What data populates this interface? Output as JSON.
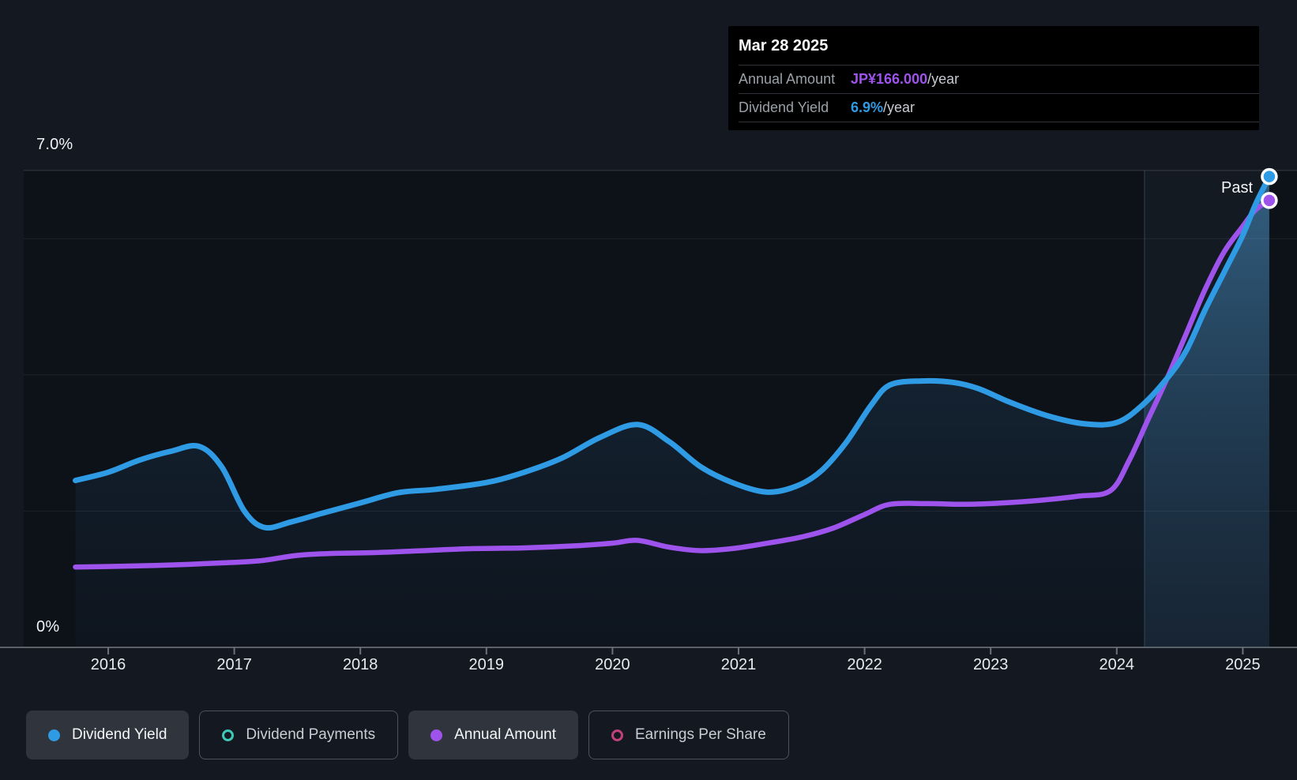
{
  "tooltip": {
    "date": "Mar 28 2025",
    "rows": [
      {
        "label": "Annual Amount",
        "value": "JP¥166.000",
        "suffix": "/year",
        "color": "#9E54EC"
      },
      {
        "label": "Dividend Yield",
        "value": "6.9%",
        "suffix": "/year",
        "color": "#2E9BE4"
      }
    ]
  },
  "legend": {
    "items": [
      {
        "label": "Dividend Yield",
        "color": "#2E9BE4",
        "swatch": "filled",
        "active": true
      },
      {
        "label": "Dividend Payments",
        "color": "#3EC8B8",
        "swatch": "ring",
        "active": false
      },
      {
        "label": "Annual Amount",
        "color": "#9E54EC",
        "swatch": "filled",
        "active": true
      },
      {
        "label": "Earnings Per Share",
        "color": "#C2417C",
        "swatch": "ring",
        "active": false
      }
    ]
  },
  "chart_data": {
    "type": "area",
    "title": "",
    "past_label": "Past",
    "y_axis": {
      "top_label": "7.0%",
      "bottom_label": "0%",
      "min_pct": 0,
      "max_pct": 7,
      "gridlines_pct": [
        7,
        6,
        4,
        2,
        0
      ]
    },
    "x_axis": {
      "ticks": [
        "2016",
        "2017",
        "2018",
        "2019",
        "2020",
        "2021",
        "2022",
        "2023",
        "2024",
        "2025"
      ]
    },
    "past_region": {
      "start_year": 2024.22,
      "end_year": 2025.21
    },
    "series": [
      {
        "name": "Dividend Yield",
        "color": "#2E9BE4",
        "unit": "percent",
        "area_fill": true,
        "end_value_label": "6.9%/year",
        "points": [
          [
            2015.74,
            2.45
          ],
          [
            2016.0,
            2.57
          ],
          [
            2016.25,
            2.75
          ],
          [
            2016.5,
            2.88
          ],
          [
            2016.72,
            2.95
          ],
          [
            2016.9,
            2.65
          ],
          [
            2017.08,
            2.0
          ],
          [
            2017.24,
            1.76
          ],
          [
            2017.45,
            1.84
          ],
          [
            2017.7,
            1.97
          ],
          [
            2018.0,
            2.12
          ],
          [
            2018.3,
            2.27
          ],
          [
            2018.6,
            2.32
          ],
          [
            2019.0,
            2.42
          ],
          [
            2019.3,
            2.57
          ],
          [
            2019.6,
            2.78
          ],
          [
            2019.9,
            3.08
          ],
          [
            2020.2,
            3.27
          ],
          [
            2020.45,
            3.02
          ],
          [
            2020.7,
            2.65
          ],
          [
            2020.95,
            2.42
          ],
          [
            2021.22,
            2.28
          ],
          [
            2021.45,
            2.36
          ],
          [
            2021.65,
            2.58
          ],
          [
            2021.85,
            3.0
          ],
          [
            2022.05,
            3.55
          ],
          [
            2022.2,
            3.85
          ],
          [
            2022.45,
            3.91
          ],
          [
            2022.7,
            3.89
          ],
          [
            2022.9,
            3.8
          ],
          [
            2023.15,
            3.6
          ],
          [
            2023.45,
            3.4
          ],
          [
            2023.75,
            3.28
          ],
          [
            2024.0,
            3.3
          ],
          [
            2024.2,
            3.55
          ],
          [
            2024.4,
            3.95
          ],
          [
            2024.55,
            4.35
          ],
          [
            2024.7,
            4.95
          ],
          [
            2024.85,
            5.5
          ],
          [
            2025.0,
            6.05
          ],
          [
            2025.1,
            6.5
          ],
          [
            2025.21,
            6.91
          ]
        ]
      },
      {
        "name": "Annual Amount",
        "color": "#9E54EC",
        "unit": "JP¥ per year (plotted on hidden right axis; values are percent-equivalent positions)",
        "area_fill": false,
        "end_value_label": "JP¥166.000/year",
        "points": [
          [
            2015.74,
            1.18
          ],
          [
            2016.1,
            1.19
          ],
          [
            2016.5,
            1.21
          ],
          [
            2016.9,
            1.24
          ],
          [
            2017.2,
            1.27
          ],
          [
            2017.5,
            1.35
          ],
          [
            2017.8,
            1.38
          ],
          [
            2018.1,
            1.39
          ],
          [
            2018.5,
            1.42
          ],
          [
            2018.9,
            1.45
          ],
          [
            2019.3,
            1.46
          ],
          [
            2019.7,
            1.49
          ],
          [
            2020.0,
            1.53
          ],
          [
            2020.2,
            1.57
          ],
          [
            2020.45,
            1.47
          ],
          [
            2020.7,
            1.42
          ],
          [
            2020.95,
            1.45
          ],
          [
            2021.2,
            1.52
          ],
          [
            2021.5,
            1.62
          ],
          [
            2021.75,
            1.75
          ],
          [
            2022.0,
            1.95
          ],
          [
            2022.2,
            2.1
          ],
          [
            2022.5,
            2.11
          ],
          [
            2022.8,
            2.1
          ],
          [
            2023.1,
            2.12
          ],
          [
            2023.4,
            2.16
          ],
          [
            2023.7,
            2.22
          ],
          [
            2023.95,
            2.3
          ],
          [
            2024.1,
            2.75
          ],
          [
            2024.25,
            3.35
          ],
          [
            2024.4,
            3.95
          ],
          [
            2024.55,
            4.6
          ],
          [
            2024.7,
            5.25
          ],
          [
            2024.85,
            5.8
          ],
          [
            2025.0,
            6.18
          ],
          [
            2025.1,
            6.42
          ],
          [
            2025.21,
            6.56
          ]
        ]
      }
    ]
  }
}
